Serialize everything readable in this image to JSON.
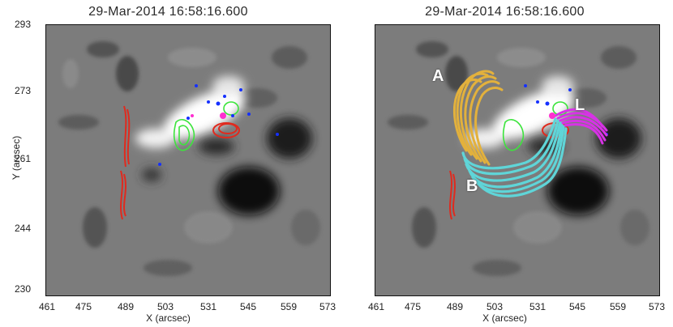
{
  "left": {
    "title": "29-Mar-2014  16:58:16.600",
    "xlabel": "X (arcsec)",
    "ylabel": "Y (arcsec)",
    "xticks": [
      "461",
      "475",
      "489",
      "503",
      "531",
      "545",
      "559",
      "573"
    ],
    "yticks": [
      "293",
      "273",
      "261",
      "244",
      "230"
    ]
  },
  "right": {
    "title": "29-Mar-2014  16:58:16.600",
    "xlabel": "X (arcsec)",
    "xticks": [
      "461",
      "475",
      "489",
      "503",
      "531",
      "545",
      "559",
      "573"
    ],
    "loop_labels": [
      "A",
      "B",
      "L"
    ]
  },
  "colors": {
    "background": "#7d7d7d",
    "positive_polarity": "#ffffff",
    "negative_polarity": "#0f0f0f",
    "red_contours": "#e02a1e",
    "green_contours": "#3de43d",
    "blue_dots": "#1530ff",
    "magenta_dots": "#ff2fd0",
    "loops_A": "#e3b13c",
    "loops_B": "#5fd5d8",
    "loops_L": "#d832e6"
  }
}
